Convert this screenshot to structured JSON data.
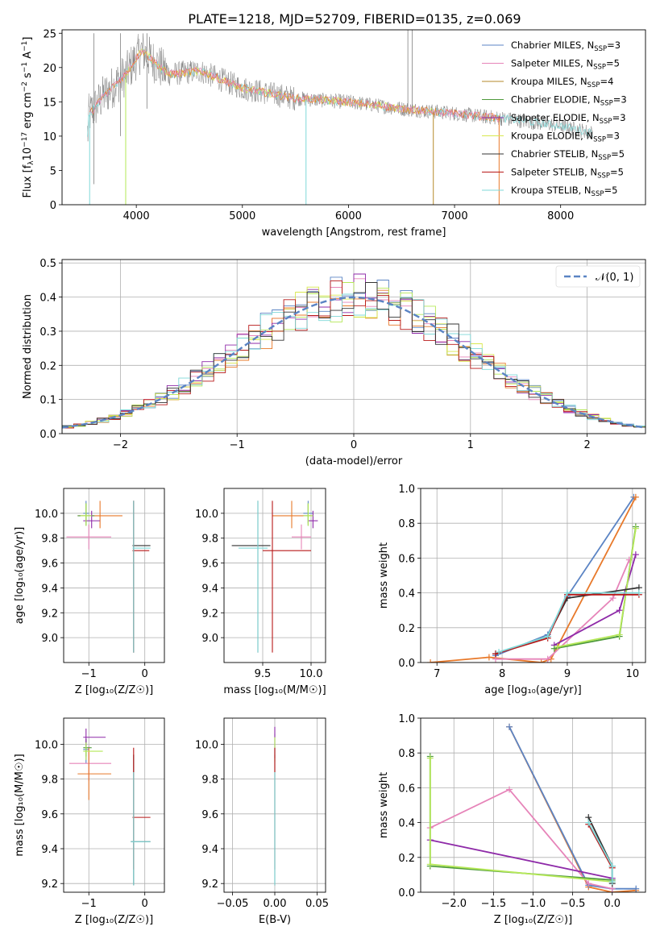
{
  "title": "PLATE=1218, MJD=52709, FIBERID=0135, z=0.069",
  "colors": {
    "Chabrier MILES": "#5b84c4",
    "Salpeter MILES": "#e684b9",
    "Kroupa MILES": "#b58a2a",
    "Chabrier ELODIE": "#4e9a3c",
    "Salpeter ELODIE": "#8e2aa8",
    "Kroupa ELODIE": "#d8e84e",
    "Chabrier STELIB": "#333333",
    "Salpeter STELIB": "#b81818",
    "Kroupa STELIB": "#7fd8d8",
    "normal": "#5b84c4",
    "orange": "#e8792a",
    "lime": "#b5e858",
    "data": "#808080"
  },
  "chart_data": [
    {
      "name": "spectrum",
      "type": "line",
      "xlabel": "wavelength [Angstrom, rest frame]",
      "ylabel_parts": [
        "Flux [f",
        "λ",
        "10",
        "−17",
        " erg cm",
        "−2",
        " s",
        "−1",
        " A",
        "−1",
        "]"
      ],
      "xlim": [
        3300,
        8800
      ],
      "ylim": [
        0,
        25.5
      ],
      "xticks": [
        4000,
        5000,
        6000,
        7000,
        8000
      ],
      "yticks": [
        0,
        5,
        10,
        15,
        20,
        25
      ],
      "continuum": {
        "x": [
          3550,
          3700,
          3900,
          4050,
          4300,
          4600,
          5000,
          5500,
          6000,
          6500,
          7000,
          7500,
          8000,
          8300
        ],
        "y": [
          13,
          16,
          19,
          22.5,
          19,
          19.5,
          17,
          15.5,
          15,
          14,
          13.3,
          12.5,
          11.5,
          10.5
        ]
      },
      "legend": [
        {
          "label": "Chabrier MILES, N",
          "sub": "SSP",
          "value": "=3",
          "color_key": "Chabrier MILES"
        },
        {
          "label": "Salpeter MILES, N",
          "sub": "SSP",
          "value": "=5",
          "color_key": "Salpeter MILES"
        },
        {
          "label": "Kroupa MILES, N",
          "sub": "SSP",
          "value": "=4",
          "color_key": "Kroupa MILES"
        },
        {
          "label": "Chabrier ELODIE, N",
          "sub": "SSP",
          "value": "=3",
          "color_key": "Chabrier ELODIE"
        },
        {
          "label": "Salpeter ELODIE, N",
          "sub": "SSP",
          "value": "=3",
          "color_key": "Salpeter ELODIE"
        },
        {
          "label": "Kroupa ELODIE, N",
          "sub": "SSP",
          "value": "=3",
          "color_key": "Kroupa ELODIE"
        },
        {
          "label": "Chabrier STELIB, N",
          "sub": "SSP",
          "value": "=5",
          "color_key": "Chabrier STELIB"
        },
        {
          "label": "Salpeter STELIB, N",
          "sub": "SSP",
          "value": "=5",
          "color_key": "Salpeter STELIB"
        },
        {
          "label": "Kroupa STELIB, N",
          "sub": "SSP",
          "value": "=5",
          "color_key": "Kroupa STELIB"
        }
      ]
    },
    {
      "name": "residuals",
      "type": "histogram",
      "xlabel": "(data-model)/error",
      "ylabel": "Normed distribution",
      "xlim": [
        -2.5,
        2.5
      ],
      "ylim": [
        0,
        0.51
      ],
      "xticks": [
        -2,
        -1,
        0,
        1,
        2
      ],
      "xtick_labels": [
        "−2",
        "−1",
        "0",
        "1",
        "2"
      ],
      "yticks": [
        0,
        0.1,
        0.2,
        0.3,
        0.4,
        0.5
      ],
      "ytick_labels": [
        "0.0",
        "0.1",
        "0.2",
        "0.3",
        "0.4",
        "0.5"
      ],
      "bins": 50,
      "legend": "𝒩(0, 1)"
    },
    {
      "name": "age-vs-Z",
      "type": "errorbar",
      "xlabel": "Z [log₁₀(Z/Z☉)]",
      "ylabel": "age  [log₁₀(age/yr)]",
      "xlim": [
        -1.45,
        0.35
      ],
      "ylim": [
        8.8,
        10.2
      ],
      "xticks": [
        -1,
        0
      ],
      "xtick_labels": [
        "−1",
        "0"
      ],
      "yticks": [
        9.0,
        9.2,
        9.4,
        9.6,
        9.8,
        10.0
      ],
      "ytick_labels": [
        "9.0",
        "9.2",
        "9.4",
        "9.6",
        "9.8",
        "10.0"
      ],
      "points": [
        {
          "x": -1.05,
          "xerr": [
            0.05,
            0.05
          ],
          "y": 10.0,
          "yerr": [
            0.08,
            0.1
          ],
          "color_key": "Chabrier MILES"
        },
        {
          "x": -1.0,
          "xerr": [
            0.4,
            0.4
          ],
          "y": 9.81,
          "yerr": [
            0.1,
            0.1
          ],
          "color_key": "Salpeter MILES"
        },
        {
          "x": -0.8,
          "xerr": [
            0.4,
            0.4
          ],
          "y": 9.98,
          "yerr": [
            0.1,
            0.12
          ],
          "color_key": "orange"
        },
        {
          "x": -1.05,
          "xerr": [
            0.15,
            0.15
          ],
          "y": 9.98,
          "yerr": [
            0.08,
            0.1
          ],
          "color_key": "Chabrier ELODIE"
        },
        {
          "x": -0.95,
          "xerr": [
            0.15,
            0.15
          ],
          "y": 9.94,
          "yerr": [
            0.06,
            0.08
          ],
          "color_key": "Salpeter ELODIE"
        },
        {
          "x": -1.05,
          "xerr": [
            0.1,
            0.1
          ],
          "y": 9.98,
          "yerr": [
            0.08,
            0.1
          ],
          "color_key": "lime"
        },
        {
          "x": -0.2,
          "xerr": [
            0.02,
            0.3
          ],
          "y": 9.74,
          "yerr": [
            0.86,
            0.36
          ],
          "color_key": "Chabrier STELIB"
        },
        {
          "x": -0.2,
          "xerr": [
            0.02,
            0.28
          ],
          "y": 9.7,
          "yerr": [
            0.82,
            0.4
          ],
          "color_key": "Salpeter STELIB"
        },
        {
          "x": -0.2,
          "xerr": [
            0.02,
            0.3
          ],
          "y": 9.72,
          "yerr": [
            0.84,
            0.38
          ],
          "color_key": "Kroupa STELIB"
        }
      ]
    },
    {
      "name": "age-vs-mass",
      "type": "errorbar",
      "xlabel": "mass [log₁₀(M/M☉)]",
      "ylabel": "",
      "xlim": [
        9.1,
        10.15
      ],
      "ylim": [
        8.8,
        10.2
      ],
      "xticks": [
        9.5,
        10.0
      ],
      "xtick_labels": [
        "9.5",
        "10.0"
      ],
      "yticks": [
        9.0,
        9.2,
        9.4,
        9.6,
        9.8,
        10.0
      ],
      "ytick_labels": [
        "9.0",
        "9.2",
        "9.4",
        "9.6",
        "9.8",
        "10.0"
      ],
      "points": [
        {
          "x": 9.97,
          "xerr": [
            0.05,
            0.05
          ],
          "y": 10.0,
          "yerr": [
            0.08,
            0.1
          ],
          "color_key": "Chabrier MILES"
        },
        {
          "x": 9.9,
          "xerr": [
            0.1,
            0.1
          ],
          "y": 9.81,
          "yerr": [
            0.1,
            0.1
          ],
          "color_key": "Salpeter MILES"
        },
        {
          "x": 9.8,
          "xerr": [
            0.2,
            0.2
          ],
          "y": 9.98,
          "yerr": [
            0.1,
            0.12
          ],
          "color_key": "orange"
        },
        {
          "x": 9.97,
          "xerr": [
            0.05,
            0.05
          ],
          "y": 9.98,
          "yerr": [
            0.08,
            0.1
          ],
          "color_key": "Chabrier ELODIE"
        },
        {
          "x": 10.02,
          "xerr": [
            0.05,
            0.05
          ],
          "y": 9.94,
          "yerr": [
            0.06,
            0.08
          ],
          "color_key": "Salpeter ELODIE"
        },
        {
          "x": 9.97,
          "xerr": [
            0.05,
            0.05
          ],
          "y": 9.98,
          "yerr": [
            0.08,
            0.1
          ],
          "color_key": "lime"
        },
        {
          "x": 9.45,
          "xerr": [
            0.27,
            0.13
          ],
          "y": 9.74,
          "yerr": [
            0.86,
            0.36
          ],
          "color_key": "Chabrier STELIB"
        },
        {
          "x": 9.6,
          "xerr": [
            0.1,
            0.4
          ],
          "y": 9.7,
          "yerr": [
            0.82,
            0.4
          ],
          "color_key": "Salpeter STELIB"
        },
        {
          "x": 9.45,
          "xerr": [
            0.2,
            0.1
          ],
          "y": 9.72,
          "yerr": [
            0.84,
            0.38
          ],
          "color_key": "Kroupa STELIB"
        }
      ]
    },
    {
      "name": "weight-vs-age",
      "type": "line",
      "xlabel": "age  [log₁₀(age/yr)]",
      "ylabel": "mass weight",
      "xlim": [
        6.75,
        10.2
      ],
      "ylim": [
        0,
        1.0
      ],
      "xticks": [
        7,
        8,
        9,
        10
      ],
      "xtick_labels": [
        "7",
        "8",
        "9",
        "10"
      ],
      "yticks": [
        0,
        0.2,
        0.4,
        0.6,
        0.8,
        1.0
      ],
      "ytick_labels": [
        "0.0",
        "0.2",
        "0.4",
        "0.6",
        "0.8",
        "1.0"
      ],
      "series": [
        {
          "color_key": "Chabrier MILES",
          "x": [
            7.9,
            8.7,
            9.0,
            10.02
          ],
          "y": [
            0.04,
            0.16,
            0.38,
            0.95
          ]
        },
        {
          "color_key": "orange",
          "x": [
            6.9,
            7.8,
            8.6,
            8.75,
            10.05
          ],
          "y": [
            0.0,
            0.03,
            0.0,
            0.02,
            0.95
          ]
        },
        {
          "color_key": "Salpeter MILES",
          "x": [
            7.9,
            8.7,
            9.7,
            9.95
          ],
          "y": [
            0.02,
            0.02,
            0.37,
            0.59
          ]
        },
        {
          "color_key": "Salpeter ELODIE",
          "x": [
            8.8,
            9.8,
            10.05
          ],
          "y": [
            0.1,
            0.3,
            0.62
          ]
        },
        {
          "color_key": "Chabrier ELODIE",
          "x": [
            8.8,
            9.8,
            10.05
          ],
          "y": [
            0.08,
            0.15,
            0.78
          ]
        },
        {
          "color_key": "lime",
          "x": [
            8.85,
            9.8,
            10.05
          ],
          "y": [
            0.09,
            0.16,
            0.77
          ]
        },
        {
          "color_key": "Chabrier STELIB",
          "x": [
            7.9,
            8.7,
            9.0,
            10.1
          ],
          "y": [
            0.05,
            0.15,
            0.37,
            0.43
          ]
        },
        {
          "color_key": "Salpeter STELIB",
          "x": [
            7.9,
            8.7,
            9.0,
            10.1
          ],
          "y": [
            0.05,
            0.14,
            0.39,
            0.39
          ]
        },
        {
          "color_key": "Kroupa STELIB",
          "x": [
            7.95,
            8.7,
            9.0,
            10.1
          ],
          "y": [
            0.06,
            0.15,
            0.4,
            0.4
          ]
        }
      ]
    },
    {
      "name": "mass-vs-Z",
      "type": "errorbar",
      "xlabel": "Z [log₁₀(Z/Z☉)]",
      "ylabel": "mass [log₁₀(M/M☉)]",
      "xlim": [
        -1.45,
        0.35
      ],
      "ylim": [
        9.15,
        10.15
      ],
      "xticks": [
        -1,
        0
      ],
      "xtick_labels": [
        "−1",
        "0"
      ],
      "yticks": [
        9.2,
        9.4,
        9.6,
        9.8,
        10.0
      ],
      "ytick_labels": [
        "9.2",
        "9.4",
        "9.6",
        "9.8",
        "10.0"
      ],
      "points": [
        {
          "x": -1.05,
          "xerr": [
            0.05,
            0.05
          ],
          "y": 9.97,
          "yerr": [
            0.08,
            0.06
          ],
          "color_key": "Chabrier MILES"
        },
        {
          "x": -1.0,
          "xerr": [
            0.35,
            0.4
          ],
          "y": 9.89,
          "yerr": [
            0.1,
            0.1
          ],
          "color_key": "Salpeter MILES"
        },
        {
          "x": -1.0,
          "xerr": [
            0.2,
            0.4
          ],
          "y": 9.83,
          "yerr": [
            0.15,
            0.15
          ],
          "color_key": "orange"
        },
        {
          "x": -1.05,
          "xerr": [
            0.05,
            0.1
          ],
          "y": 9.98,
          "yerr": [
            0.05,
            0.05
          ],
          "color_key": "Chabrier ELODIE"
        },
        {
          "x": -1.05,
          "xerr": [
            0.05,
            0.35
          ],
          "y": 10.04,
          "yerr": [
            0.05,
            0.05
          ],
          "color_key": "Salpeter ELODIE"
        },
        {
          "x": -1.05,
          "xerr": [
            0.05,
            0.3
          ],
          "y": 9.96,
          "yerr": [
            0.05,
            0.05
          ],
          "color_key": "lime"
        },
        {
          "x": -0.2,
          "xerr": [
            0.05,
            0.3
          ],
          "y": 9.44,
          "yerr": [
            0.25,
            0.5
          ],
          "color_key": "Chabrier STELIB"
        },
        {
          "x": -0.2,
          "xerr": [
            0.02,
            0.3
          ],
          "y": 9.58,
          "yerr": [
            0.3,
            0.4
          ],
          "color_key": "Salpeter STELIB"
        },
        {
          "x": -0.2,
          "xerr": [
            0.05,
            0.3
          ],
          "y": 9.44,
          "yerr": [
            0.25,
            0.4
          ],
          "color_key": "Kroupa STELIB"
        }
      ]
    },
    {
      "name": "mass-vs-ebv",
      "type": "errorbar",
      "xlabel": "E(B-V)",
      "ylabel": "",
      "xlim": [
        -0.06,
        0.06
      ],
      "ylim": [
        9.15,
        10.15
      ],
      "xticks": [
        -0.05,
        0,
        0.05
      ],
      "xtick_labels": [
        "−0.05",
        "0.00",
        "0.05"
      ],
      "yticks": [
        9.2,
        9.4,
        9.6,
        9.8,
        10.0
      ],
      "ytick_labels": [
        "9.2",
        "9.4",
        "9.6",
        "9.8",
        "10.0"
      ],
      "points": [
        {
          "x": 0.0,
          "xerr": [
            0,
            0
          ],
          "y": 10.0,
          "yerr": [
            0.06,
            0.06
          ],
          "color_key": "Chabrier MILES"
        },
        {
          "x": 0.0,
          "xerr": [
            0,
            0
          ],
          "y": 10.0,
          "yerr": [
            0.08,
            0.1
          ],
          "color_key": "Salpeter ELODIE"
        },
        {
          "x": 0.0,
          "xerr": [
            0,
            0
          ],
          "y": 9.98,
          "yerr": [
            0.08,
            0.06
          ],
          "color_key": "lime"
        },
        {
          "x": 0.0,
          "xerr": [
            0,
            0
          ],
          "y": 9.44,
          "yerr": [
            0.25,
            0.5
          ],
          "color_key": "Chabrier STELIB"
        },
        {
          "x": 0.0,
          "xerr": [
            0,
            0
          ],
          "y": 9.58,
          "yerr": [
            0.3,
            0.4
          ],
          "color_key": "Salpeter STELIB"
        },
        {
          "x": 0.0,
          "xerr": [
            0,
            0
          ],
          "y": 9.44,
          "yerr": [
            0.25,
            0.4
          ],
          "color_key": "Kroupa STELIB"
        }
      ]
    },
    {
      "name": "weight-vs-Z",
      "type": "line",
      "xlabel": "Z [log₁₀(Z/Z☉)]",
      "ylabel": "mass weight",
      "xlim": [
        -2.42,
        0.42
      ],
      "ylim": [
        0,
        1.0
      ],
      "xticks": [
        -2.0,
        -1.5,
        -1.0,
        -0.5,
        0.0
      ],
      "xtick_labels": [
        "−2.0",
        "−1.5",
        "−1.0",
        "−0.5",
        "0.0"
      ],
      "yticks": [
        0,
        0.2,
        0.4,
        0.6,
        0.8,
        1.0
      ],
      "ytick_labels": [
        "0.0",
        "0.2",
        "0.4",
        "0.6",
        "0.8",
        "1.0"
      ],
      "series": [
        {
          "color_key": "orange",
          "x": [
            -1.3,
            -0.3,
            0.0,
            0.3
          ],
          "y": [
            0.95,
            0.03,
            0.0,
            0.01
          ]
        },
        {
          "color_key": "Chabrier MILES",
          "x": [
            -1.3,
            -0.3,
            0.0,
            0.3
          ],
          "y": [
            0.95,
            0.04,
            0.02,
            0.02
          ]
        },
        {
          "color_key": "Salpeter MILES",
          "x": [
            -2.3,
            -1.3,
            -0.3,
            0.0
          ],
          "y": [
            0.37,
            0.59,
            0.05,
            0.02
          ]
        },
        {
          "color_key": "Salpeter ELODIE",
          "x": [
            -2.3,
            0.0
          ],
          "y": [
            0.3,
            0.08
          ]
        },
        {
          "color_key": "Chabrier ELODIE",
          "x": [
            -2.3,
            -2.3,
            0.0
          ],
          "y": [
            0.78,
            0.15,
            0.07
          ]
        },
        {
          "color_key": "lime",
          "x": [
            -2.3,
            -2.3,
            0.0
          ],
          "y": [
            0.77,
            0.16,
            0.06
          ]
        },
        {
          "color_key": "Chabrier STELIB",
          "x": [
            -0.3,
            0.0,
            0.0
          ],
          "y": [
            0.43,
            0.15,
            0.05
          ]
        },
        {
          "color_key": "Salpeter STELIB",
          "x": [
            -0.3,
            0.0
          ],
          "y": [
            0.39,
            0.14
          ]
        },
        {
          "color_key": "Kroupa STELIB",
          "x": [
            -0.3,
            0.0,
            0.0
          ],
          "y": [
            0.4,
            0.15,
            0.06
          ]
        }
      ]
    }
  ]
}
